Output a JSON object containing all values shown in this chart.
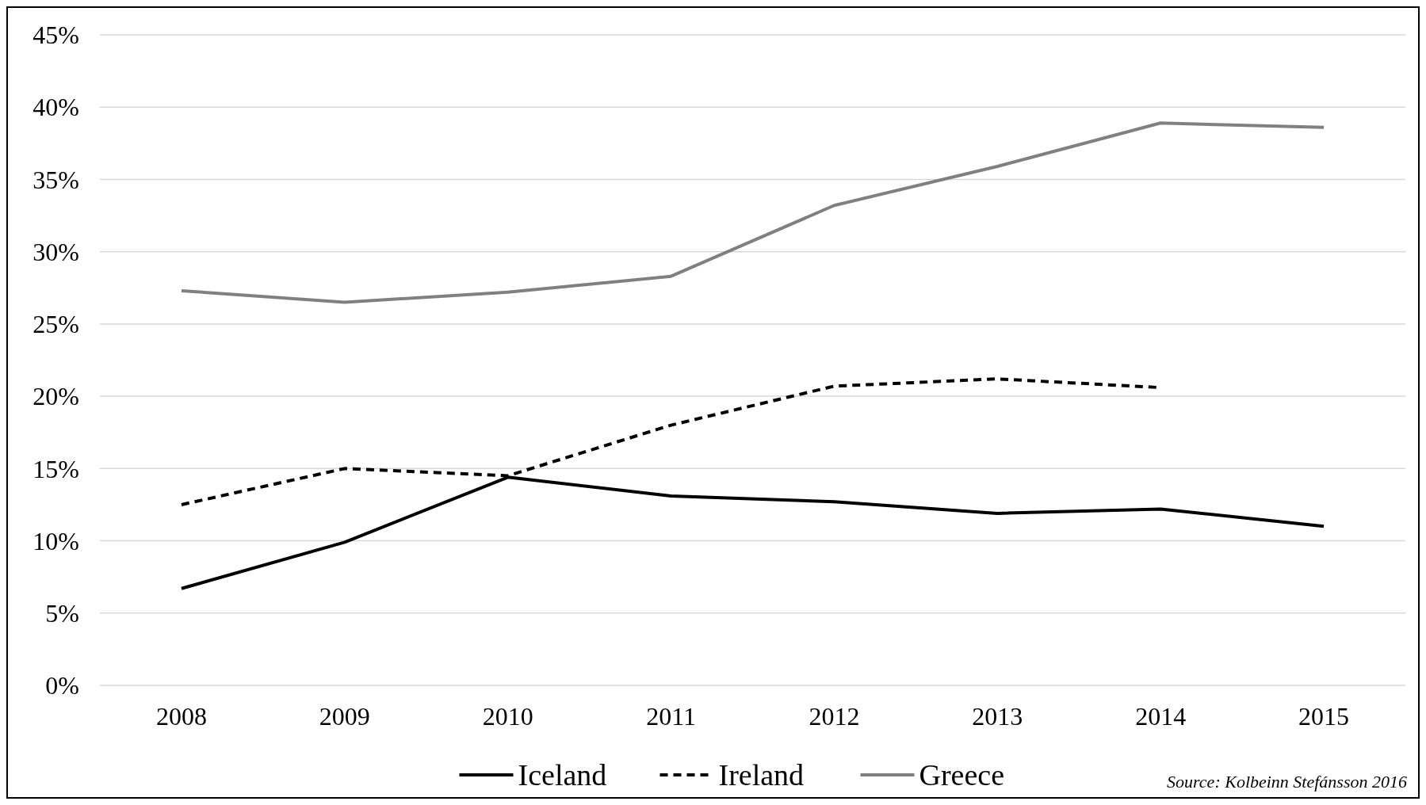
{
  "chart_data": {
    "type": "line",
    "categories": [
      "2008",
      "2009",
      "2010",
      "2011",
      "2012",
      "2013",
      "2014",
      "2015"
    ],
    "series": [
      {
        "name": "Iceland",
        "color": "#000000",
        "line_style": "solid",
        "values": [
          6.7,
          9.9,
          14.4,
          13.1,
          12.7,
          11.9,
          12.2,
          11.0
        ]
      },
      {
        "name": "Ireland",
        "color": "#000000",
        "line_style": "dashed",
        "values": [
          12.5,
          15.0,
          14.5,
          18.0,
          20.7,
          21.2,
          20.6,
          null
        ]
      },
      {
        "name": "Greece",
        "color": "#808080",
        "line_style": "solid",
        "values": [
          27.3,
          26.5,
          27.2,
          28.3,
          33.2,
          35.9,
          38.9,
          38.6
        ]
      }
    ],
    "ylim": [
      0,
      45
    ],
    "yticks": [
      {
        "value": 0,
        "label": "0%"
      },
      {
        "value": 5,
        "label": "5%"
      },
      {
        "value": 10,
        "label": "10%"
      },
      {
        "value": 15,
        "label": "15%"
      },
      {
        "value": 20,
        "label": "20%"
      },
      {
        "value": 25,
        "label": "25%"
      },
      {
        "value": 30,
        "label": "30%"
      },
      {
        "value": 35,
        "label": "35%"
      },
      {
        "value": 40,
        "label": "40%"
      },
      {
        "value": 45,
        "label": "45%"
      }
    ],
    "grid": "y",
    "legend": "bottom",
    "marker": "none",
    "annotations": [
      "Source: Kolbeinn Stefánsson 2016"
    ]
  }
}
